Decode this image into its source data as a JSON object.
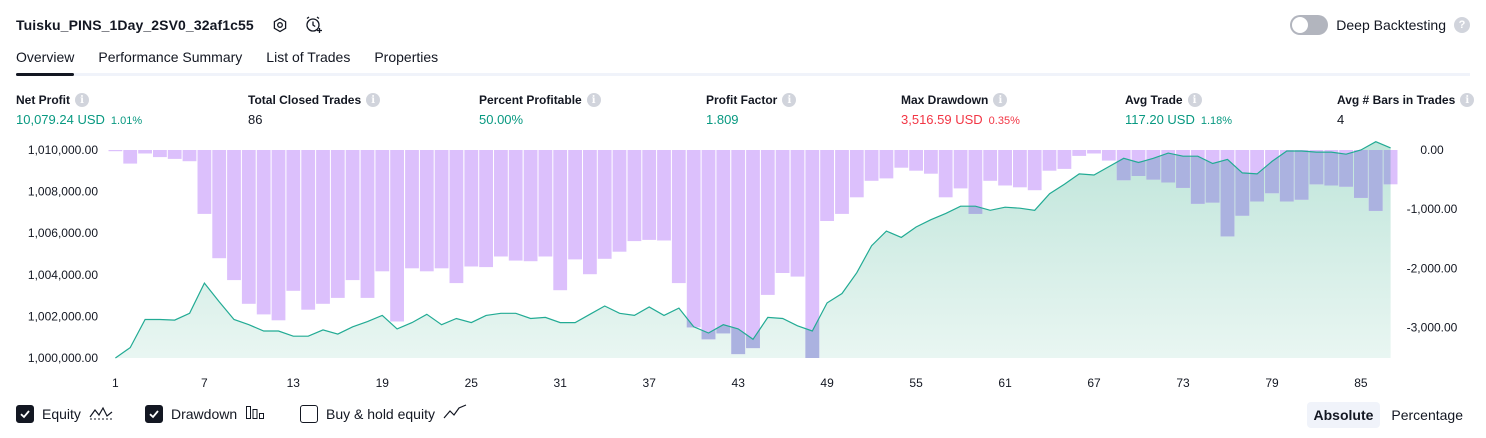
{
  "header": {
    "strategy_title": "Tuisku_PINS_1Day_2SV0_32af1c55",
    "deep_backtesting_label": "Deep Backtesting",
    "deep_backtesting_enabled": false
  },
  "tabs": [
    {
      "label": "Overview",
      "active": true
    },
    {
      "label": "Performance Summary",
      "active": false
    },
    {
      "label": "List of Trades",
      "active": false
    },
    {
      "label": "Properties",
      "active": false
    }
  ],
  "metrics": [
    {
      "label": "Net Profit",
      "value": "10,079.24 USD",
      "pct": "1.01%",
      "tone": "pos"
    },
    {
      "label": "Total Closed Trades",
      "value": "86",
      "pct": "",
      "tone": "neutral"
    },
    {
      "label": "Percent Profitable",
      "value": "50.00%",
      "pct": "",
      "tone": "pos"
    },
    {
      "label": "Profit Factor",
      "value": "1.809",
      "pct": "",
      "tone": "pos"
    },
    {
      "label": "Max Drawdown",
      "value": "3,516.59 USD",
      "pct": "0.35%",
      "tone": "neg"
    },
    {
      "label": "Avg Trade",
      "value": "117.20 USD",
      "pct": "1.18%",
      "tone": "pos"
    },
    {
      "label": "Avg # Bars in Trades",
      "value": "4",
      "pct": "",
      "tone": "neutral"
    }
  ],
  "chart_data": {
    "type": "area",
    "x": [
      1,
      2,
      3,
      4,
      5,
      6,
      7,
      8,
      9,
      10,
      11,
      12,
      13,
      14,
      15,
      16,
      17,
      18,
      19,
      20,
      21,
      22,
      23,
      24,
      25,
      26,
      27,
      28,
      29,
      30,
      31,
      32,
      33,
      34,
      35,
      36,
      37,
      38,
      39,
      40,
      41,
      42,
      43,
      44,
      45,
      46,
      47,
      48,
      49,
      50,
      51,
      52,
      53,
      54,
      55,
      56,
      57,
      58,
      59,
      60,
      61,
      62,
      63,
      64,
      65,
      66,
      67,
      68,
      69,
      70,
      71,
      72,
      73,
      74,
      75,
      76,
      77,
      78,
      79,
      80,
      81,
      82,
      83,
      84,
      85,
      86,
      87
    ],
    "x_ticks": [
      "1",
      "7",
      "13",
      "19",
      "25",
      "31",
      "37",
      "43",
      "49",
      "55",
      "61",
      "67",
      "73",
      "79",
      "85"
    ],
    "series": [
      {
        "axis": "left",
        "values": [
          1000000,
          1000500,
          1001850,
          1001850,
          1001820,
          1002150,
          1003600,
          1002700,
          1001850,
          1001600,
          1001300,
          1001300,
          1001050,
          1001050,
          1001350,
          1001150,
          1001500,
          1001750,
          1002050,
          1001400,
          1001700,
          1002100,
          1001600,
          1001900,
          1001700,
          1002050,
          1002150,
          1002150,
          1001900,
          1001950,
          1001700,
          1001700,
          1002100,
          1002500,
          1002150,
          1002050,
          1002450,
          1002050,
          1002400,
          1001500,
          1001200,
          1001600,
          1001400,
          1000900,
          1001950,
          1001900,
          1001550,
          1001300,
          1002650,
          1003100,
          1004100,
          1005400,
          1006100,
          1005800,
          1006300,
          1006650,
          1006950,
          1007300,
          1007300,
          1007100,
          1007250,
          1007200,
          1007100,
          1007900,
          1008350,
          1008850,
          1008800,
          1009200,
          1009600,
          1009400,
          1009600,
          1009850,
          1009700,
          1009700,
          1009350,
          1009550,
          1008900,
          1008850,
          1009450,
          1009950,
          1009950,
          1009900,
          1009900,
          1009800,
          1010000,
          1010400,
          1010100
        ]
      },
      {
        "axis": "right",
        "values": [
          -20,
          -230,
          -60,
          -120,
          -150,
          -190,
          -1080,
          -1830,
          -2200,
          -2600,
          -2780,
          -2880,
          -2380,
          -2700,
          -2600,
          -2500,
          -2200,
          -2500,
          -2050,
          -2900,
          -2000,
          -2050,
          -2000,
          -2250,
          -1970,
          -1980,
          -1800,
          -1870,
          -1880,
          -1800,
          -2370,
          -1850,
          -2100,
          -1840,
          -1720,
          -1540,
          -1520,
          -1530,
          -2250,
          -3000,
          -3200,
          -3100,
          -3450,
          -3350,
          -2450,
          -2080,
          -2140,
          -3516,
          -1200,
          -1080,
          -800,
          -520,
          -480,
          -300,
          -350,
          -400,
          -800,
          -650,
          -1080,
          -520,
          -600,
          -630,
          -680,
          -350,
          -320,
          -100,
          -60,
          -180,
          -510,
          -440,
          -500,
          -550,
          -640,
          -910,
          -890,
          -1460,
          -1110,
          -870,
          -730,
          -870,
          -840,
          -580,
          -600,
          -620,
          -810,
          -1030,
          -580
        ]
      }
    ],
    "left_ticks": [
      "1,010,000.00",
      "1,008,000.00",
      "1,006,000.00",
      "1,004,000.00",
      "1,002,000.00",
      "1,000,000.00"
    ],
    "left_ylim": [
      1000000,
      1010000
    ],
    "right_ticks": [
      "0.00",
      "-1,000.00",
      "-2,000.00",
      "-3,000.00"
    ],
    "right_ylim": [
      -3516.59,
      0
    ],
    "colors": {
      "equity_line": "#22ab94",
      "equity_fill_top": "#bfe5da",
      "equity_fill_bottom": "#e9f6f2",
      "drawdown_fill": "#dcc0fc",
      "drawdown_overlap": "#abb2e0"
    },
    "grid": false
  },
  "footer": {
    "equity_label": "Equity",
    "equity_checked": true,
    "drawdown_label": "Drawdown",
    "drawdown_checked": true,
    "buyhold_label": "Buy & hold equity",
    "buyhold_checked": false,
    "absolute_label": "Absolute",
    "percentage_label": "Percentage",
    "mode": "Absolute"
  }
}
